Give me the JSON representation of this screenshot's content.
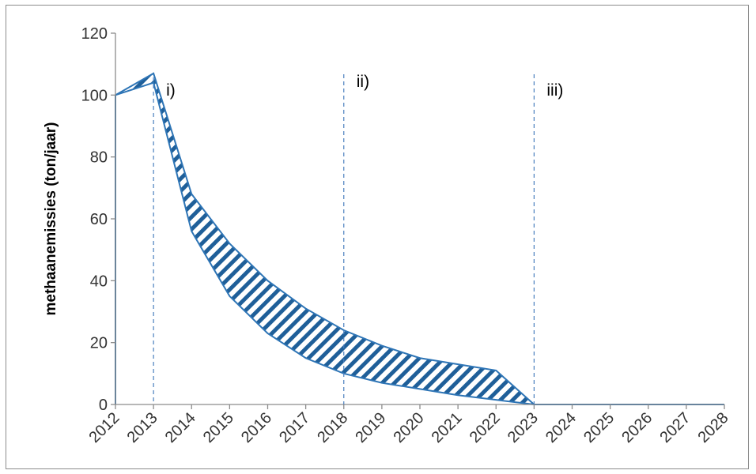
{
  "chart_data": {
    "type": "area",
    "xlabel": "",
    "ylabel": "methaanemissies (ton/jaar)",
    "x": [
      "2012",
      "2013",
      "2014",
      "2015",
      "2016",
      "2017",
      "2018",
      "2019",
      "2020",
      "2021",
      "2022",
      "2023",
      "2024",
      "2025",
      "2026",
      "2027",
      "2028"
    ],
    "ylim": [
      0,
      120
    ],
    "yticks": [
      "0",
      "20",
      "40",
      "60",
      "80",
      "100",
      "120"
    ],
    "grid": false,
    "series": [
      {
        "values": [
          100,
          107,
          68,
          52,
          40,
          31,
          24,
          19,
          15,
          13,
          11,
          0,
          0,
          0,
          0,
          0,
          0
        ]
      },
      {
        "values": [
          100,
          104,
          56,
          35,
          23,
          15,
          10,
          7,
          5,
          3,
          1.5,
          0,
          0,
          0,
          0,
          0,
          0
        ]
      }
    ],
    "annotations": [
      {
        "x": "2013",
        "label": "i)"
      },
      {
        "x": "2018",
        "label": "ii)"
      },
      {
        "x": "2023",
        "label": "iii)"
      }
    ],
    "colors": {
      "series": "#2e75b6",
      "hatch": "#1f5f99",
      "axis": "#8c8c8c",
      "vline": "#4a7fbf"
    }
  }
}
